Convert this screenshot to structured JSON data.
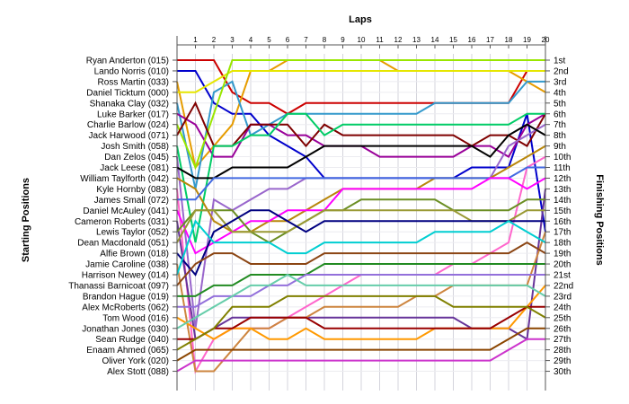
{
  "chart_data": {
    "type": "line",
    "title": "",
    "xlabel": "Laps",
    "ylabel_left": "Starting Positions",
    "ylabel_right": "Finishing Positions",
    "x": [
      0,
      1,
      2,
      3,
      4,
      5,
      6,
      7,
      8,
      9,
      10,
      11,
      12,
      13,
      14,
      15,
      16,
      17,
      18,
      19,
      20
    ],
    "x_tick_labels": [
      "1",
      "2",
      "3",
      "4",
      "5",
      "6",
      "7",
      "8",
      "9",
      "10",
      "11",
      "12",
      "13",
      "14",
      "15",
      "16",
      "17",
      "18",
      "19",
      "20"
    ],
    "ylim": [
      1,
      30
    ],
    "y_inverted": true,
    "grid": true,
    "start_labels": [
      "Ryan Anderton (015)",
      "Lando Norris (010)",
      "Ross Martin (033)",
      "Daniel Ticktum (000)",
      "Shanaka Clay (032)",
      "Luke Barker (017)",
      "Charlie Barlow (024)",
      "Jack Harwood (071)",
      "Josh Smith (058)",
      "Dan Zelos (045)",
      "Jack Leese (081)",
      "William Taylforth (042)",
      "Kyle Hornby (083)",
      "James Small (072)",
      "Daniel McAuley (041)",
      "Cameron Roberts (031)",
      "Lewis Taylor (052)",
      "Dean Macdonald (051)",
      "Alfie Brown (018)",
      "Jamie Caroline (038)",
      "Harrison Newey (014)",
      "Thanassi Barnicoat (097)",
      "Brandon Hague (019)",
      "Alex McRoberts (062)",
      "Tom Wood (016)",
      "Jonathan Jones (030)",
      "Sean Rudge (040)",
      "Enaam Ahmed (065)",
      "Oliver York (020)",
      "Alex Stott (088)"
    ],
    "finish_labels": [
      "1st",
      "2nd",
      "3rd",
      "4th",
      "5th",
      "6th",
      "7th",
      "8th",
      "9th",
      "10th",
      "11th",
      "12th",
      "13th",
      "14th",
      "15th",
      "16th",
      "17th",
      "18th",
      "19th",
      "20th",
      "21st",
      "22nd",
      "23rd",
      "24th",
      "25th",
      "26th",
      "27th",
      "28th",
      "29th",
      "30th"
    ],
    "series": [
      {
        "color": "#CC0000",
        "values": [
          1,
          1,
          1,
          4,
          5,
          5,
          6,
          5,
          5,
          5,
          5,
          5,
          5,
          5,
          5,
          5,
          5,
          5,
          5,
          2,
          2
        ]
      },
      {
        "color": "#0000CC",
        "values": [
          2,
          2,
          5,
          6,
          6,
          8,
          9,
          10,
          12,
          12,
          12,
          12,
          12,
          12,
          12,
          12,
          11,
          11,
          11,
          6,
          17
        ]
      },
      {
        "color": "#E69C00",
        "values": [
          3,
          11,
          9,
          7,
          2,
          2,
          1,
          1,
          1,
          1,
          1,
          1,
          2,
          2,
          2,
          2,
          2,
          2,
          2,
          3,
          4
        ]
      },
      {
        "color": "#E6E600",
        "values": [
          4,
          4,
          3,
          2,
          2,
          2,
          2,
          2,
          2,
          2,
          2,
          2,
          2,
          2,
          2,
          2,
          2,
          2,
          2,
          2,
          2
        ]
      },
      {
        "color": "#3399CC",
        "values": [
          5,
          13,
          4,
          3,
          8,
          7,
          6,
          6,
          6,
          6,
          6,
          6,
          6,
          6,
          5,
          5,
          5,
          5,
          5,
          3,
          3
        ]
      },
      {
        "color": "#990099",
        "values": [
          6,
          7,
          10,
          10,
          7,
          7,
          8,
          8,
          9,
          9,
          9,
          10,
          10,
          10,
          10,
          10,
          9,
          9,
          10,
          7,
          6
        ]
      },
      {
        "color": "#99E600",
        "values": [
          7,
          11,
          6,
          1,
          1,
          1,
          1,
          1,
          1,
          1,
          1,
          1,
          1,
          1,
          1,
          1,
          1,
          1,
          1,
          1,
          1
        ]
      },
      {
        "color": "#7F0000",
        "values": [
          8,
          5,
          9,
          9,
          7,
          7,
          7,
          9,
          7,
          8,
          8,
          8,
          8,
          8,
          8,
          8,
          9,
          8,
          8,
          9,
          6
        ]
      },
      {
        "color": "#00CC66",
        "values": [
          9,
          18,
          9,
          9,
          8,
          8,
          6,
          6,
          8,
          7,
          7,
          7,
          7,
          7,
          7,
          7,
          7,
          7,
          7,
          6,
          6
        ]
      },
      {
        "color": "#9966CC",
        "values": [
          10,
          26,
          14,
          15,
          14,
          13,
          13,
          12,
          12,
          12,
          12,
          12,
          12,
          12,
          12,
          12,
          12,
          12,
          9,
          8,
          7
        ]
      },
      {
        "color": "#000000",
        "values": [
          11,
          12,
          12,
          11,
          11,
          11,
          11,
          10,
          9,
          9,
          9,
          9,
          9,
          9,
          9,
          9,
          9,
          10,
          8,
          7,
          8
        ]
      },
      {
        "color": "#B8860B",
        "values": [
          12,
          13,
          16,
          17,
          17,
          16,
          16,
          15,
          14,
          13,
          13,
          13,
          13,
          13,
          12,
          12,
          12,
          12,
          11,
          10,
          9
        ]
      },
      {
        "color": "#FF66CC",
        "values": [
          13,
          30,
          27,
          26,
          26,
          26,
          25,
          24,
          23,
          22,
          21,
          21,
          21,
          21,
          21,
          20,
          20,
          19,
          18,
          11,
          10
        ]
      },
      {
        "color": "#4169E1",
        "values": [
          14,
          14,
          12,
          12,
          12,
          12,
          12,
          12,
          12,
          12,
          12,
          12,
          12,
          12,
          12,
          12,
          12,
          12,
          12,
          11,
          11
        ]
      },
      {
        "color": "#FF00FF",
        "values": [
          15,
          19,
          18,
          17,
          16,
          16,
          15,
          15,
          15,
          13,
          13,
          13,
          13,
          13,
          13,
          13,
          13,
          12,
          12,
          13,
          12
        ]
      },
      {
        "color": "#663399",
        "values": [
          16,
          27,
          26,
          25,
          25,
          25,
          25,
          25,
          25,
          25,
          25,
          25,
          25,
          25,
          25,
          25,
          26,
          26,
          26,
          27,
          13
        ]
      },
      {
        "color": "#6B8E23",
        "values": [
          17,
          15,
          15,
          15,
          17,
          18,
          17,
          16,
          15,
          15,
          14,
          14,
          14,
          14,
          14,
          15,
          15,
          15,
          15,
          14,
          14
        ]
      },
      {
        "color": "#999933",
        "values": [
          18,
          15,
          15,
          17,
          17,
          17,
          17,
          16,
          15,
          15,
          15,
          15,
          15,
          15,
          15,
          15,
          16,
          16,
          16,
          15,
          15
        ]
      },
      {
        "color": "#000080",
        "values": [
          19,
          21,
          17,
          16,
          15,
          15,
          16,
          17,
          16,
          16,
          16,
          16,
          16,
          16,
          16,
          16,
          16,
          16,
          16,
          16,
          16
        ]
      },
      {
        "color": "#CD853F",
        "values": [
          20,
          30,
          30,
          28,
          26,
          26,
          25,
          25,
          24,
          24,
          24,
          24,
          24,
          23,
          23,
          22,
          22,
          22,
          22,
          22,
          17
        ]
      },
      {
        "color": "#00CED1",
        "values": [
          21,
          16,
          18,
          18,
          18,
          18,
          19,
          19,
          18,
          18,
          18,
          18,
          18,
          18,
          17,
          17,
          17,
          17,
          16,
          17,
          18
        ]
      },
      {
        "color": "#8B4513",
        "values": [
          22,
          20,
          19,
          19,
          20,
          20,
          20,
          20,
          19,
          19,
          19,
          19,
          19,
          19,
          19,
          19,
          19,
          19,
          19,
          18,
          19
        ]
      },
      {
        "color": "#228B22",
        "values": [
          23,
          23,
          22,
          22,
          21,
          21,
          21,
          21,
          20,
          20,
          20,
          20,
          20,
          20,
          20,
          20,
          20,
          20,
          20,
          20,
          20
        ]
      },
      {
        "color": "#9370DB",
        "values": [
          24,
          24,
          23,
          23,
          23,
          22,
          22,
          21,
          21,
          21,
          21,
          21,
          21,
          21,
          21,
          21,
          21,
          21,
          21,
          21,
          21
        ]
      },
      {
        "color": "#FF9900",
        "values": [
          25,
          26,
          27,
          26,
          26,
          27,
          27,
          26,
          27,
          27,
          27,
          27,
          27,
          27,
          26,
          26,
          26,
          26,
          26,
          24,
          22
        ]
      },
      {
        "color": "#66CDAA",
        "values": [
          26,
          25,
          24,
          23,
          22,
          22,
          21,
          22,
          22,
          22,
          22,
          22,
          22,
          22,
          22,
          22,
          22,
          22,
          22,
          22,
          23
        ]
      },
      {
        "color": "#990000",
        "values": [
          27,
          27,
          26,
          26,
          25,
          25,
          25,
          25,
          26,
          26,
          26,
          26,
          26,
          26,
          26,
          26,
          26,
          26,
          25,
          24,
          24
        ]
      },
      {
        "color": "#808000",
        "values": [
          28,
          27,
          26,
          24,
          24,
          24,
          23,
          23,
          23,
          23,
          23,
          23,
          23,
          23,
          23,
          24,
          24,
          24,
          24,
          24,
          25
        ]
      },
      {
        "color": "#8B4500",
        "values": [
          29,
          28,
          28,
          28,
          28,
          28,
          28,
          28,
          28,
          28,
          28,
          28,
          28,
          28,
          28,
          28,
          28,
          28,
          27,
          26,
          26
        ]
      },
      {
        "color": "#CC33CC",
        "values": [
          30,
          29,
          29,
          29,
          29,
          29,
          29,
          29,
          29,
          29,
          29,
          29,
          29,
          29,
          29,
          29,
          29,
          29,
          28,
          27,
          27
        ]
      }
    ]
  }
}
